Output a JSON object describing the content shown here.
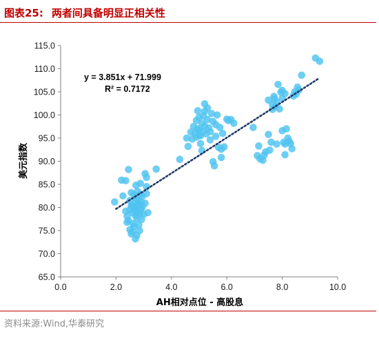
{
  "figure": {
    "label": "图表25:",
    "title": "两者间具备明显正相关性",
    "source": "资料来源:Wind,华泰研究"
  },
  "colors": {
    "title": "#c00000",
    "point": "#4fc3f0",
    "trend": "#1f3864",
    "axis": "#7f7f7f"
  },
  "chart_data": {
    "type": "scatter",
    "title": "两者间具备明显正相关性",
    "xlabel": "AH相对点位 - 高股息",
    "ylabel": "美元指数",
    "xlim": [
      0,
      10
    ],
    "ylim": [
      65,
      115
    ],
    "xticks": [
      "0.0",
      "2.0",
      "4.0",
      "6.0",
      "8.0",
      "10.0"
    ],
    "yticks": [
      "65.0",
      "70.0",
      "75.0",
      "80.0",
      "85.0",
      "90.0",
      "95.0",
      "100.0",
      "105.0",
      "110.0",
      "115.0"
    ],
    "grid": false,
    "trendline": {
      "slope": 3.851,
      "intercept": 71.999,
      "x_range": [
        2.0,
        9.3
      ],
      "style": "dotted",
      "equation": "y = 3.851x + 71.999",
      "r_squared": "R² = 0.7172"
    },
    "points": [
      [
        1.95,
        81.2
      ],
      [
        2.25,
        82.5
      ],
      [
        2.35,
        85.8
      ],
      [
        2.45,
        88.2
      ],
      [
        2.55,
        80.4
      ],
      [
        2.35,
        79.2
      ],
      [
        2.4,
        78.1
      ],
      [
        2.45,
        77.2
      ],
      [
        2.5,
        79.5
      ],
      [
        2.5,
        81.5
      ],
      [
        2.55,
        83.2
      ],
      [
        2.6,
        80.3
      ],
      [
        2.6,
        78.8
      ],
      [
        2.62,
        76.5
      ],
      [
        2.65,
        82.7
      ],
      [
        2.65,
        79.8
      ],
      [
        2.68,
        81.0
      ],
      [
        2.7,
        80.2
      ],
      [
        2.7,
        78.3
      ],
      [
        2.72,
        84.8
      ],
      [
        2.72,
        82.1
      ],
      [
        2.75,
        79.5
      ],
      [
        2.75,
        77.6
      ],
      [
        2.78,
        80.8
      ],
      [
        2.78,
        83.5
      ],
      [
        2.8,
        79.0
      ],
      [
        2.8,
        81.6
      ],
      [
        2.82,
        76.2
      ],
      [
        2.85,
        80.5
      ],
      [
        2.85,
        78.6
      ],
      [
        2.88,
        82.8
      ],
      [
        2.88,
        85.2
      ],
      [
        2.9,
        81.2
      ],
      [
        2.9,
        79.6
      ],
      [
        2.92,
        77.4
      ],
      [
        2.95,
        80.1
      ],
      [
        2.95,
        82.4
      ],
      [
        3.0,
        78.5
      ],
      [
        3.05,
        80.9
      ],
      [
        3.1,
        83.0
      ],
      [
        3.1,
        86.5
      ],
      [
        3.15,
        78.9
      ],
      [
        2.4,
        76.8
      ],
      [
        2.5,
        75.2
      ],
      [
        2.55,
        74.3
      ],
      [
        2.65,
        75.9
      ],
      [
        2.7,
        73.2
      ],
      [
        2.75,
        74.0
      ],
      [
        2.85,
        75.0
      ],
      [
        2.6,
        74.8
      ],
      [
        3.05,
        87.3
      ],
      [
        3.45,
        88.3
      ],
      [
        2.2,
        85.9
      ],
      [
        3.1,
        84.5
      ],
      [
        4.3,
        90.4
      ],
      [
        4.55,
        95.0
      ],
      [
        4.6,
        93.2
      ],
      [
        4.7,
        96.3
      ],
      [
        4.75,
        94.8
      ],
      [
        4.8,
        97.5
      ],
      [
        4.85,
        96.0
      ],
      [
        4.9,
        95.2
      ],
      [
        4.9,
        98.8
      ],
      [
        4.95,
        97.0
      ],
      [
        5.0,
        99.5
      ],
      [
        5.0,
        96.8
      ],
      [
        5.05,
        95.5
      ],
      [
        5.05,
        93.8
      ],
      [
        5.1,
        98.2
      ],
      [
        5.1,
        92.3
      ],
      [
        5.15,
        96.5
      ],
      [
        5.2,
        100.8
      ],
      [
        5.2,
        102.4
      ],
      [
        5.2,
        97.6
      ],
      [
        5.25,
        95.9
      ],
      [
        5.3,
        101.5
      ],
      [
        5.3,
        99.0
      ],
      [
        5.35,
        97.2
      ],
      [
        5.4,
        96.4
      ],
      [
        5.4,
        94.6
      ],
      [
        5.45,
        100.3
      ],
      [
        5.5,
        98.6
      ],
      [
        5.5,
        89.9
      ],
      [
        5.55,
        89.0
      ],
      [
        5.6,
        97.9
      ],
      [
        5.6,
        95.4
      ],
      [
        5.65,
        100.0
      ],
      [
        5.7,
        93.0
      ],
      [
        5.75,
        97.3
      ],
      [
        5.8,
        92.6
      ],
      [
        5.8,
        90.8
      ],
      [
        5.85,
        96.0
      ],
      [
        5.9,
        93.1
      ],
      [
        6.0,
        99.1
      ],
      [
        6.05,
        98.8
      ],
      [
        6.15,
        99.0
      ],
      [
        6.25,
        98.2
      ],
      [
        5.0,
        95.7
      ],
      [
        4.95,
        100.9
      ],
      [
        5.15,
        99.8
      ],
      [
        6.95,
        97.3
      ],
      [
        7.1,
        91.2
      ],
      [
        7.15,
        93.3
      ],
      [
        7.2,
        90.5
      ],
      [
        7.3,
        90.2
      ],
      [
        7.35,
        91.3
      ],
      [
        7.4,
        92.0
      ],
      [
        7.5,
        95.8
      ],
      [
        7.5,
        103.2
      ],
      [
        7.55,
        92.4
      ],
      [
        7.6,
        94.1
      ],
      [
        7.65,
        102.2
      ],
      [
        7.65,
        101.2
      ],
      [
        7.7,
        104.0
      ],
      [
        7.72,
        103.5
      ],
      [
        7.75,
        101.8
      ],
      [
        7.8,
        102.8
      ],
      [
        7.8,
        93.7
      ],
      [
        7.85,
        106.6
      ],
      [
        7.9,
        101.3
      ],
      [
        7.95,
        104.9
      ],
      [
        8.0,
        105.3
      ],
      [
        8.0,
        103.6
      ],
      [
        8.0,
        96.6
      ],
      [
        8.05,
        94.1
      ],
      [
        8.1,
        93.7
      ],
      [
        8.1,
        91.4
      ],
      [
        8.15,
        97.0
      ],
      [
        8.2,
        95.0
      ],
      [
        8.25,
        94.3
      ],
      [
        8.3,
        93.8
      ],
      [
        8.35,
        92.7
      ],
      [
        8.4,
        104.1
      ],
      [
        8.45,
        105.0
      ],
      [
        8.5,
        104.5
      ],
      [
        8.55,
        106.0
      ],
      [
        8.6,
        105.4
      ],
      [
        8.7,
        108.6
      ],
      [
        9.2,
        112.3
      ],
      [
        9.35,
        111.6
      ],
      [
        8.1,
        104.6
      ]
    ]
  }
}
